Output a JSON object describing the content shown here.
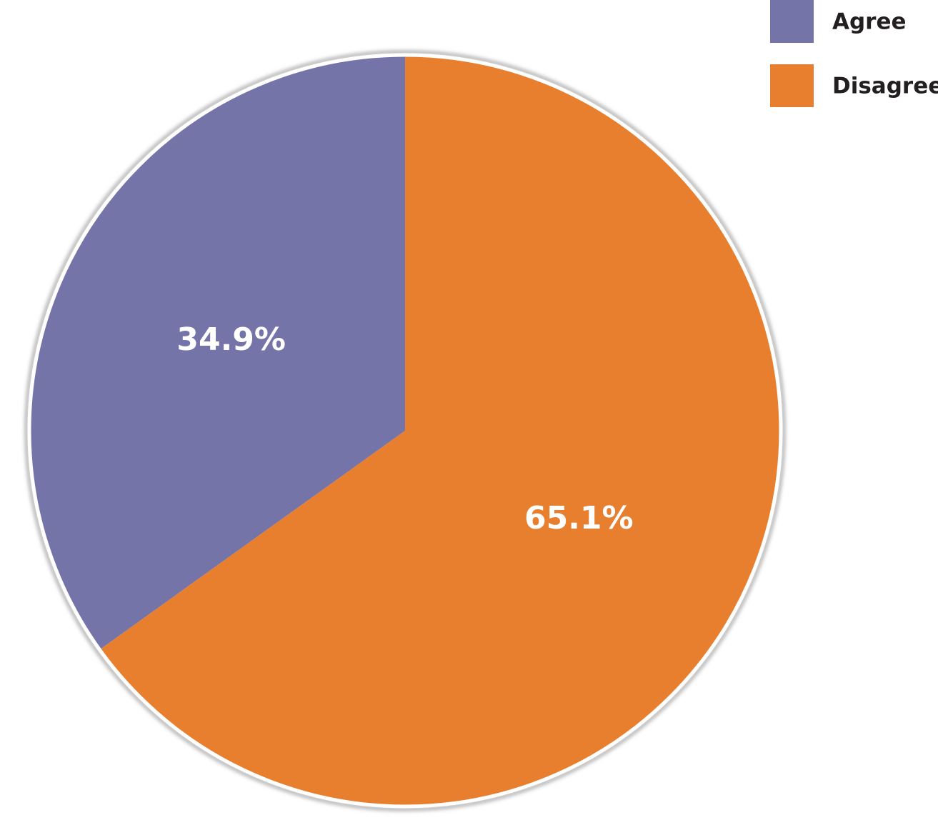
{
  "chart_data": {
    "type": "pie",
    "categories": [
      "Agree",
      "Disagree"
    ],
    "values": [
      34.9,
      65.1
    ],
    "value_labels": [
      "34.9%",
      "65.1%"
    ],
    "colors": [
      "#7474a8",
      "#e87f2e"
    ],
    "legend": "top-right"
  }
}
